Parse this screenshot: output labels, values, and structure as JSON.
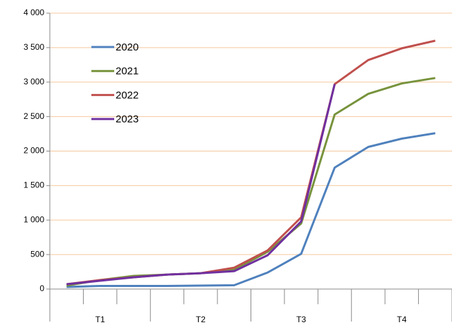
{
  "chart_data": {
    "type": "line",
    "categories": [
      null,
      null,
      null,
      null,
      null,
      null,
      null,
      null,
      null,
      null,
      null,
      null
    ],
    "groups": [
      "T1",
      "T2",
      "T3",
      "T4"
    ],
    "series": [
      {
        "name": "2020",
        "color": "#4f81bd",
        "values": [
          30,
          45,
          45,
          45,
          50,
          55,
          240,
          510,
          1760,
          2060,
          2180,
          2260
        ]
      },
      {
        "name": "2021",
        "color": "#77933c",
        "values": [
          50,
          130,
          190,
          210,
          230,
          280,
          540,
          950,
          2530,
          2830,
          2980,
          3060
        ]
      },
      {
        "name": "2022",
        "color": "#c0504d",
        "values": [
          70,
          130,
          170,
          210,
          230,
          310,
          560,
          1040,
          2970,
          3320,
          3490,
          3600
        ]
      },
      {
        "name": "2023",
        "color": "#7030a0",
        "values": [
          70,
          120,
          170,
          210,
          230,
          260,
          490,
          980,
          2970,
          null,
          null,
          null
        ]
      }
    ],
    "ylim": [
      0,
      4000
    ],
    "yticks": [
      0,
      500,
      {
        "value": 1000,
        "label": "1 000"
      },
      {
        "value": 1500,
        "label": "1 500"
      },
      {
        "value": 2000,
        "label": "2 000"
      },
      {
        "value": 2500,
        "label": "2 500"
      },
      {
        "value": 3000,
        "label": "3 000"
      },
      {
        "value": 3500,
        "label": "3 500"
      },
      {
        "value": 4000,
        "label": "4 000"
      }
    ],
    "grid": true,
    "grid_color": "#f6c89e",
    "legend": "upper left"
  }
}
